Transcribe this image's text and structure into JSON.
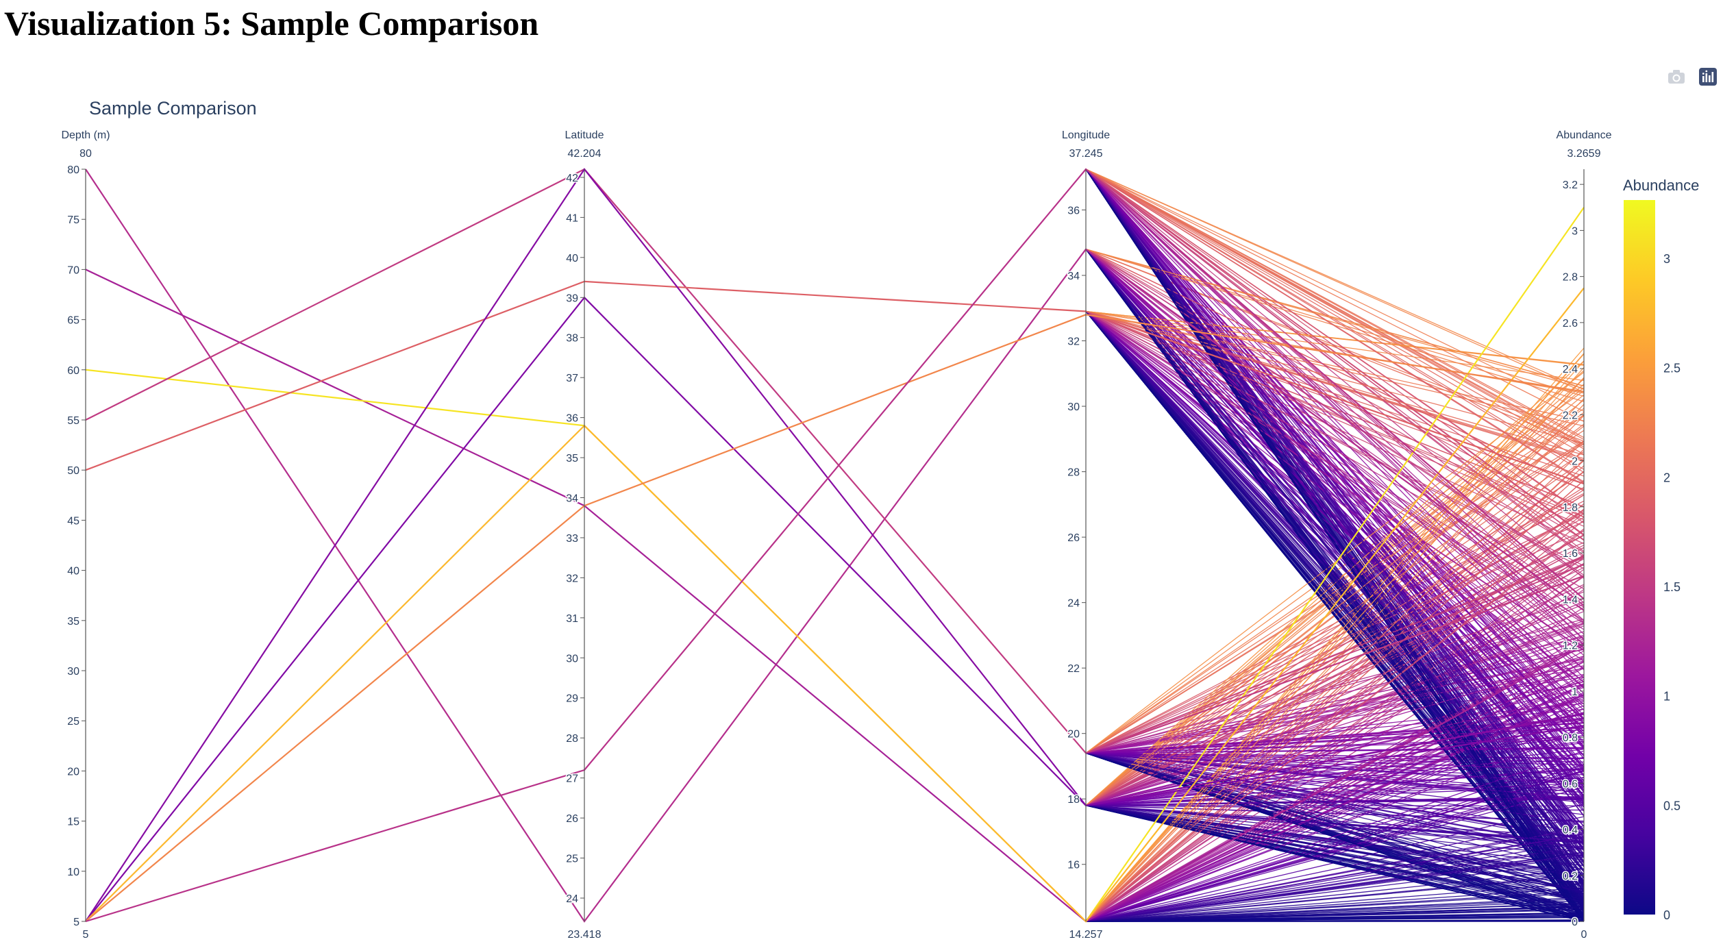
{
  "page": {
    "heading": "Visualization 5: Sample Comparison"
  },
  "modebar": {
    "icons": [
      "camera-icon",
      "plotly-logo-icon"
    ]
  },
  "chart_data": {
    "type": "parallel_coordinates",
    "title": "Sample Comparison",
    "dimensions": [
      {
        "label": "Depth (m)",
        "range": [
          5,
          80
        ],
        "min_label": "5",
        "max_label": "80",
        "ticks": [
          5,
          10,
          15,
          20,
          25,
          30,
          35,
          40,
          45,
          50,
          55,
          60,
          65,
          70,
          75,
          80
        ],
        "tick_labels": [
          "5",
          "10",
          "15",
          "20",
          "25",
          "30",
          "35",
          "40",
          "45",
          "50",
          "55",
          "60",
          "65",
          "70",
          "75",
          "80"
        ]
      },
      {
        "label": "Latitude",
        "range": [
          23.418,
          42.204
        ],
        "min_label": "23.418",
        "max_label": "42.204",
        "ticks": [
          24,
          25,
          26,
          27,
          28,
          29,
          30,
          31,
          32,
          33,
          34,
          35,
          36,
          37,
          38,
          39,
          40,
          41,
          42
        ],
        "tick_labels": [
          "24",
          "25",
          "26",
          "27",
          "28",
          "29",
          "30",
          "31",
          "32",
          "33",
          "34",
          "35",
          "36",
          "37",
          "38",
          "39",
          "40",
          "41",
          "42"
        ]
      },
      {
        "label": "Longitude",
        "range": [
          14.257,
          37.245
        ],
        "min_label": "14.257",
        "max_label": "37.245",
        "ticks": [
          16,
          18,
          20,
          22,
          24,
          26,
          28,
          30,
          32,
          34,
          36
        ],
        "tick_labels": [
          "16",
          "18",
          "20",
          "22",
          "24",
          "26",
          "28",
          "30",
          "32",
          "34",
          "36"
        ]
      },
      {
        "label": "Abundance",
        "range": [
          0,
          3.2659
        ],
        "min_label": "0",
        "max_label": "3.2659",
        "ticks": [
          0,
          0.2,
          0.4,
          0.6,
          0.8,
          1,
          1.2,
          1.4,
          1.6,
          1.8,
          2,
          2.2,
          2.4,
          2.6,
          2.8,
          3,
          3.2
        ],
        "tick_labels": [
          "0",
          "0.2",
          "0.4",
          "0.6",
          "0.8",
          "1",
          "1.2",
          "1.4",
          "1.6",
          "1.8",
          "2",
          "2.2",
          "2.4",
          "2.6",
          "2.8",
          "3",
          "3.2"
        ]
      }
    ],
    "highlighted_lines": [
      {
        "values": [
          80,
          23.418,
          34.8,
          1.35
        ]
      },
      {
        "values": [
          70,
          33.8,
          14.257,
          1.2
        ]
      },
      {
        "values": [
          60,
          35.8,
          14.257,
          3.1
        ]
      },
      {
        "values": [
          55,
          42.204,
          19.4,
          1.5
        ]
      },
      {
        "values": [
          50,
          39.4,
          32.9,
          1.9
        ]
      },
      {
        "values": [
          5,
          42.204,
          17.8,
          0.9
        ]
      },
      {
        "values": [
          5,
          39.0,
          17.8,
          0.85
        ]
      },
      {
        "values": [
          5,
          35.8,
          14.257,
          2.75
        ]
      },
      {
        "values": [
          5,
          33.8,
          32.8,
          2.3
        ]
      },
      {
        "values": [
          5,
          27.2,
          37.245,
          1.4
        ]
      }
    ],
    "bulk_lines": {
      "longitude_clusters": [
        37.245,
        34.8,
        32.9,
        19.4,
        17.8,
        14.257
      ],
      "abundance_range": [
        0,
        2.5
      ]
    },
    "colorscale": {
      "title": "Abundance",
      "range": [
        0,
        3.2659
      ],
      "ticks": [
        0,
        0.5,
        1,
        1.5,
        2,
        2.5,
        3
      ],
      "tick_labels": [
        "0",
        "0.5",
        "1",
        "1.5",
        "2",
        "2.5",
        "3"
      ],
      "stops": [
        "#0d0887",
        "#46039f",
        "#7201a8",
        "#9c179e",
        "#bd3786",
        "#d8576b",
        "#ed7953",
        "#fb9f3a",
        "#fdca26",
        "#f0f921"
      ]
    }
  }
}
